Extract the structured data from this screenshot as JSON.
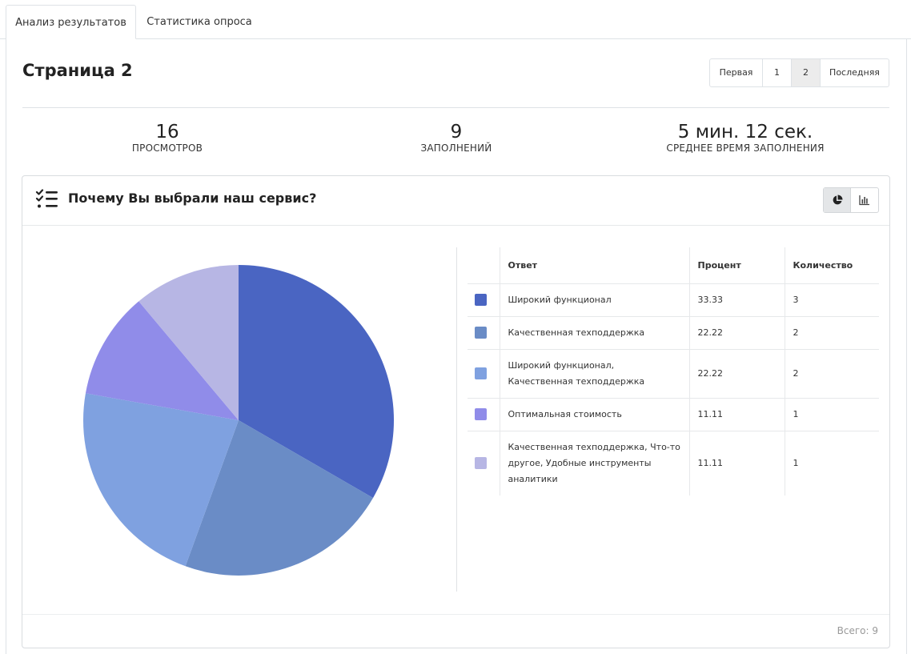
{
  "tabs": [
    {
      "label": "Анализ результатов",
      "active": true
    },
    {
      "label": "Статистика опроса",
      "active": false
    }
  ],
  "page_title": "Страница 2",
  "pagination": {
    "first": "Первая",
    "pages": [
      "1",
      "2"
    ],
    "current": "2",
    "last": "Последняя"
  },
  "stats": [
    {
      "value": "16",
      "label": "ПРОСМОТРОВ"
    },
    {
      "value": "9",
      "label": "ЗАПОЛНЕНИЙ"
    },
    {
      "value": "5 мин. 12 сек.",
      "label": "СРЕДНЕЕ ВРЕМЯ ЗАПОЛНЕНИЯ"
    }
  ],
  "question": {
    "title": "Почему Вы выбрали наш сервис?",
    "icon": "checklist-icon",
    "view_modes": [
      {
        "icon": "pie-chart-icon",
        "active": true
      },
      {
        "icon": "bar-chart-icon",
        "active": false
      }
    ],
    "table": {
      "headers": [
        "",
        "Ответ",
        "Процент",
        "Количество"
      ],
      "rows": [
        {
          "color": "#4a65c2",
          "answer": "Широкий функционал",
          "percent": "33.33",
          "count": "3"
        },
        {
          "color": "#6a8cc6",
          "answer": "Качественная техподдержка",
          "percent": "22.22",
          "count": "2"
        },
        {
          "color": "#7fa1e0",
          "answer": "Широкий функционал, Качественная техподдержка",
          "percent": "22.22",
          "count": "2"
        },
        {
          "color": "#908ce9",
          "answer": "Оптимальная стоимость",
          "percent": "11.11",
          "count": "1"
        },
        {
          "color": "#b7b6e4",
          "answer": "Качественная техподдержка, Что-то другое, Удобные инструменты аналитики",
          "percent": "11.11",
          "count": "1"
        }
      ]
    },
    "total_label": "Всего: 9"
  },
  "chart_data": {
    "type": "pie",
    "categories": [
      "Широкий функционал",
      "Качественная техподдержка",
      "Широкий функционал, Качественная техподдержка",
      "Оптимальная стоимость",
      "Качественная техподдержка, Что-то другое, Удобные инструменты аналитики"
    ],
    "values": [
      33.33,
      22.22,
      22.22,
      11.11,
      11.11
    ],
    "colors": [
      "#4a65c2",
      "#6a8cc6",
      "#7fa1e0",
      "#908ce9",
      "#b7b6e4"
    ]
  }
}
